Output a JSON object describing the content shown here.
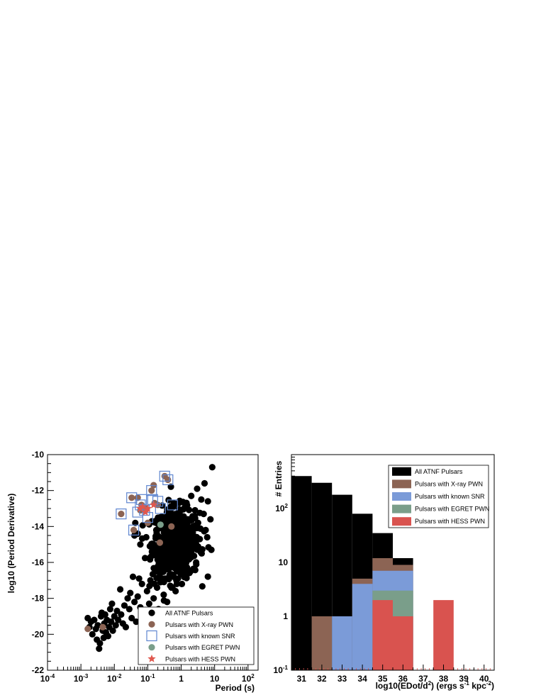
{
  "chart_data": [
    {
      "type": "scatter",
      "xlabel": "Period (s)",
      "ylabel": "log10 (Period Derivative)",
      "x_scale": "log",
      "xlim": [
        0.0001,
        200
      ],
      "ylim": [
        -22,
        -10
      ],
      "x_tick_labels": [
        {
          "value": 0.0001,
          "base": "10",
          "exp": "-4"
        },
        {
          "value": 0.001,
          "base": "10",
          "exp": "-3"
        },
        {
          "value": 0.01,
          "base": "10",
          "exp": "-2"
        },
        {
          "value": 0.1,
          "base": "10",
          "exp": "-1"
        },
        {
          "value": 1,
          "base": "1",
          "exp": ""
        },
        {
          "value": 10,
          "base": "10",
          "exp": ""
        },
        {
          "value": 100,
          "base": "10",
          "exp": "2"
        }
      ],
      "y_ticks": [
        -22,
        -20,
        -18,
        -16,
        -14,
        -12,
        -10
      ],
      "grid": false,
      "legend_position": "bottom-right",
      "series": [
        {
          "name": "All ATNF Pulsars",
          "marker": "circle",
          "color": "#000000",
          "cloud": [
            {
              "x": 0.0016,
              "y": -19.1
            },
            {
              "x": 0.0018,
              "y": -19.6
            },
            {
              "x": 0.002,
              "y": -19.3
            },
            {
              "x": 0.0022,
              "y": -20.0
            },
            {
              "x": 0.0025,
              "y": -19.2
            },
            {
              "x": 0.0028,
              "y": -19.7
            },
            {
              "x": 0.003,
              "y": -20.3
            },
            {
              "x": 0.0032,
              "y": -19.5
            },
            {
              "x": 0.0035,
              "y": -20.8
            },
            {
              "x": 0.0037,
              "y": -20.5
            },
            {
              "x": 0.004,
              "y": -19.0
            },
            {
              "x": 0.0042,
              "y": -18.8
            },
            {
              "x": 0.0045,
              "y": -19.8
            },
            {
              "x": 0.0048,
              "y": -20.2
            },
            {
              "x": 0.005,
              "y": -19.4
            },
            {
              "x": 0.0053,
              "y": -18.9
            },
            {
              "x": 0.0056,
              "y": -19.9
            },
            {
              "x": 0.006,
              "y": -19.2
            },
            {
              "x": 0.0065,
              "y": -20.1
            },
            {
              "x": 0.007,
              "y": -19.6
            },
            {
              "x": 0.0075,
              "y": -18.6
            },
            {
              "x": 0.008,
              "y": -19.3
            },
            {
              "x": 0.0085,
              "y": -18.3
            },
            {
              "x": 0.009,
              "y": -19.8
            },
            {
              "x": 0.01,
              "y": -19.0
            },
            {
              "x": 0.011,
              "y": -19.5
            },
            {
              "x": 0.012,
              "y": -18.7
            },
            {
              "x": 0.013,
              "y": -19.2
            },
            {
              "x": 0.015,
              "y": -17.5
            },
            {
              "x": 0.016,
              "y": -18.9
            },
            {
              "x": 0.018,
              "y": -19.4
            },
            {
              "x": 0.02,
              "y": -18.4
            },
            {
              "x": 0.022,
              "y": -19.6
            },
            {
              "x": 0.025,
              "y": -18.0
            },
            {
              "x": 0.028,
              "y": -18.6
            },
            {
              "x": 0.03,
              "y": -17.7
            },
            {
              "x": 0.033,
              "y": -19.1
            },
            {
              "x": 0.036,
              "y": -16.8
            },
            {
              "x": 0.04,
              "y": -18.2
            },
            {
              "x": 0.045,
              "y": -19.3
            },
            {
              "x": 0.05,
              "y": -17.9
            },
            {
              "x": 0.055,
              "y": -16.9
            },
            {
              "x": 0.06,
              "y": -18.5
            },
            {
              "x": 0.067,
              "y": -17.2
            },
            {
              "x": 0.075,
              "y": -19.1
            },
            {
              "x": 0.085,
              "y": -18.8
            },
            {
              "x": 0.095,
              "y": -17.6
            },
            {
              "x": 0.11,
              "y": -18.3
            },
            {
              "x": 0.12,
              "y": -17.0
            },
            {
              "x": 0.13,
              "y": -19.4
            },
            {
              "x": 0.15,
              "y": -18.0
            },
            {
              "x": 0.17,
              "y": -16.5
            },
            {
              "x": 0.19,
              "y": -17.4
            },
            {
              "x": 0.21,
              "y": -18.6
            },
            {
              "x": 0.24,
              "y": -17.1
            },
            {
              "x": 0.27,
              "y": -16.2
            },
            {
              "x": 0.3,
              "y": -17.8
            },
            {
              "x": 0.34,
              "y": -16.9
            },
            {
              "x": 0.38,
              "y": -18.2
            },
            {
              "x": 0.42,
              "y": -16.4
            },
            {
              "x": 0.47,
              "y": -17.3
            },
            {
              "x": 0.53,
              "y": -15.9
            },
            {
              "x": 0.6,
              "y": -16.8
            },
            {
              "x": 0.68,
              "y": -17.6
            },
            {
              "x": 0.76,
              "y": -16.1
            },
            {
              "x": 0.85,
              "y": -15.5
            },
            {
              "x": 0.95,
              "y": -16.6
            },
            {
              "x": 1.05,
              "y": -17.2
            },
            {
              "x": 1.2,
              "y": -15.8
            },
            {
              "x": 1.35,
              "y": -16.3
            },
            {
              "x": 1.5,
              "y": -14.9
            },
            {
              "x": 1.7,
              "y": -15.6
            },
            {
              "x": 1.9,
              "y": -16.5
            },
            {
              "x": 2.2,
              "y": -14.4
            },
            {
              "x": 2.5,
              "y": -15.2
            },
            {
              "x": 2.8,
              "y": -16.0
            },
            {
              "x": 3.2,
              "y": -13.8
            },
            {
              "x": 3.6,
              "y": -14.7
            },
            {
              "x": 4.1,
              "y": -15.5
            },
            {
              "x": 4.7,
              "y": -13.3
            },
            {
              "x": 5.4,
              "y": -14.2
            },
            {
              "x": 6.3,
              "y": -12.6
            },
            {
              "x": 7.5,
              "y": -13.6
            },
            {
              "x": 8.5,
              "y": -10.7
            },
            {
              "x": 8.0,
              "y": -15.3
            },
            {
              "x": 5.0,
              "y": -11.6
            },
            {
              "x": 3.0,
              "y": -11.9
            },
            {
              "x": 2.0,
              "y": -12.3
            },
            {
              "x": 1.3,
              "y": -12.9
            },
            {
              "x": 0.9,
              "y": -13.2
            },
            {
              "x": 0.6,
              "y": -12.7
            },
            {
              "x": 0.35,
              "y": -13.5
            },
            {
              "x": 0.18,
              "y": -14.2
            },
            {
              "x": 0.13,
              "y": -15.1
            },
            {
              "x": 0.09,
              "y": -14.6
            },
            {
              "x": 0.06,
              "y": -15.0
            },
            {
              "x": 0.05,
              "y": -14.4
            },
            {
              "x": 0.04,
              "y": -14.5
            },
            {
              "x": 0.2,
              "y": -15.8
            },
            {
              "x": 0.25,
              "y": -14.8
            },
            {
              "x": 0.3,
              "y": -15.3
            },
            {
              "x": 0.4,
              "y": -14.1
            },
            {
              "x": 0.5,
              "y": -15.0
            },
            {
              "x": 0.7,
              "y": -14.5
            },
            {
              "x": 1.0,
              "y": -14.0
            },
            {
              "x": 1.1,
              "y": -15.9
            },
            {
              "x": 0.8,
              "y": -16.9
            },
            {
              "x": 0.45,
              "y": -16.7
            },
            {
              "x": 0.22,
              "y": -16.3
            },
            {
              "x": 0.16,
              "y": -17.2
            },
            {
              "x": 2.6,
              "y": -13.1
            },
            {
              "x": 4.0,
              "y": -12.5
            },
            {
              "x": 6.0,
              "y": -14.6
            },
            {
              "x": 1.6,
              "y": -13.6
            }
          ],
          "core": {
            "center_x": 0.7,
            "center_y": -14.9,
            "spread_logx": 0.35,
            "spread_y": 0.95,
            "count": 520
          }
        },
        {
          "name": "Pulsars with X-ray PWN",
          "marker": "circle",
          "color": "#8c6454",
          "points": [
            {
              "x": 0.0016,
              "y": -19.7
            },
            {
              "x": 0.0045,
              "y": -19.6
            },
            {
              "x": 0.016,
              "y": -13.3
            },
            {
              "x": 0.033,
              "y": -12.4
            },
            {
              "x": 0.038,
              "y": -14.2
            },
            {
              "x": 0.05,
              "y": -12.4
            },
            {
              "x": 0.06,
              "y": -13.1
            },
            {
              "x": 0.065,
              "y": -12.8
            },
            {
              "x": 0.08,
              "y": -13.1
            },
            {
              "x": 0.089,
              "y": -13.0
            },
            {
              "x": 0.1,
              "y": -13.8
            },
            {
              "x": 0.13,
              "y": -12.0
            },
            {
              "x": 0.15,
              "y": -11.7
            },
            {
              "x": 0.16,
              "y": -12.7
            },
            {
              "x": 0.2,
              "y": -12.8
            },
            {
              "x": 0.23,
              "y": -14.9
            },
            {
              "x": 0.32,
              "y": -11.2
            },
            {
              "x": 0.4,
              "y": -11.4
            },
            {
              "x": 0.51,
              "y": -14.0
            }
          ]
        },
        {
          "name": "Pulsars with known SNR",
          "marker": "open-square",
          "color": "#5f86d0",
          "points": [
            {
              "x": 0.016,
              "y": -13.3
            },
            {
              "x": 0.033,
              "y": -12.4
            },
            {
              "x": 0.038,
              "y": -14.2
            },
            {
              "x": 0.05,
              "y": -13.2
            },
            {
              "x": 0.06,
              "y": -12.8
            },
            {
              "x": 0.065,
              "y": -12.5
            },
            {
              "x": 0.08,
              "y": -13.1
            },
            {
              "x": 0.1,
              "y": -13.5
            },
            {
              "x": 0.13,
              "y": -12.0
            },
            {
              "x": 0.14,
              "y": -12.5
            },
            {
              "x": 0.2,
              "y": -12.6
            },
            {
              "x": 0.24,
              "y": -13.0
            },
            {
              "x": 0.32,
              "y": -11.2
            },
            {
              "x": 0.4,
              "y": -11.4
            },
            {
              "x": 0.55,
              "y": -12.8
            }
          ]
        },
        {
          "name": "Pulsars with EGRET PWN",
          "marker": "circle",
          "color": "#7a9e8a",
          "points": [
            {
              "x": 0.24,
              "y": -13.9
            }
          ]
        },
        {
          "name": "Pulsars with HESS PWN",
          "marker": "star",
          "color": "#e0584e",
          "points": [
            {
              "x": 0.06,
              "y": -13.0
            },
            {
              "x": 0.07,
              "y": -12.9
            },
            {
              "x": 0.085,
              "y": -13.2
            },
            {
              "x": 0.1,
              "y": -13.0
            },
            {
              "x": 0.15,
              "y": -12.8
            }
          ]
        }
      ]
    },
    {
      "type": "bar",
      "xlabel_parts": [
        {
          "text": "log10(EDot/d",
          "shift": "0"
        },
        {
          "text": "2",
          "shift": "sup"
        },
        {
          "text": ") (ergs s",
          "shift": "0"
        },
        {
          "text": "-1",
          "shift": "sup"
        },
        {
          "text": " kpc",
          "shift": "0"
        },
        {
          "text": "-2",
          "shift": "sup"
        },
        {
          "text": ")",
          "shift": "0"
        }
      ],
      "ylabel": "# Entries",
      "y_scale": "log",
      "ylim": [
        0.1,
        1000
      ],
      "xlim": [
        30.5,
        40.5
      ],
      "categories": [
        "31",
        "32",
        "33",
        "34",
        "35",
        "36",
        "37",
        "38",
        "39",
        "40"
      ],
      "y_tick_labels": [
        {
          "value": 0.1,
          "base": "10",
          "exp": "-1"
        },
        {
          "value": 1,
          "base": "1",
          "exp": ""
        },
        {
          "value": 10,
          "base": "10",
          "exp": ""
        },
        {
          "value": 100,
          "base": "10",
          "exp": "2"
        }
      ],
      "legend_position": "top-right",
      "series": [
        {
          "name": "All ATNF Pulsars",
          "color": "#000000",
          "values": [
            400,
            300,
            180,
            80,
            35,
            12,
            0,
            0,
            0,
            0
          ]
        },
        {
          "name": "Pulsars with X-ray PWN",
          "color": "#8c6454",
          "values": [
            0,
            1,
            0,
            5,
            12,
            9,
            0,
            0,
            0,
            0
          ]
        },
        {
          "name": "Pulsars with known SNR",
          "color": "#7b9bd8",
          "values": [
            0,
            0,
            1,
            4,
            7,
            7,
            0,
            0,
            0,
            0
          ]
        },
        {
          "name": "Pulsars with EGRET PWN",
          "color": "#7a9e8a",
          "values": [
            0,
            0,
            0,
            0,
            3,
            3,
            0,
            0,
            0,
            0
          ]
        },
        {
          "name": "Pulsars with HESS PWN",
          "color": "#d9534f",
          "values": [
            0,
            0,
            0,
            0,
            2,
            1,
            0,
            2,
            0,
            0
          ]
        }
      ]
    }
  ]
}
